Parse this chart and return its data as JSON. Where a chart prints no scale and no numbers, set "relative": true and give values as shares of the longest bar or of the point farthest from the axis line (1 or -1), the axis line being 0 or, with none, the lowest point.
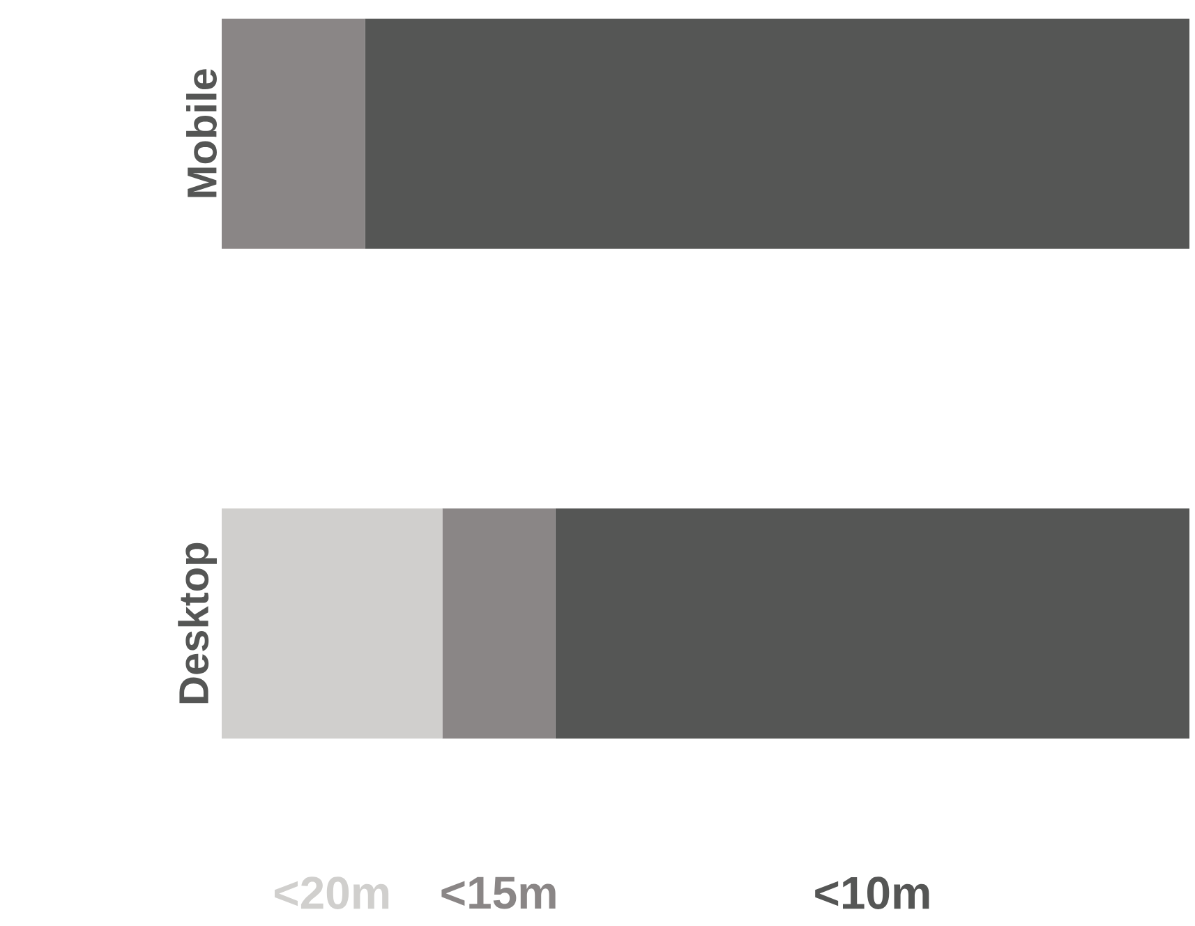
{
  "chart_data": {
    "type": "bar",
    "orientation": "horizontal",
    "stacked": true,
    "relative": true,
    "legend": "bottom",
    "categories": [
      "Mobile",
      "Desktop"
    ],
    "series": [
      {
        "name": "<20m",
        "color": "#d0cfcd",
        "values": [
          0,
          0.228
        ]
      },
      {
        "name": "<15m",
        "color": "#8a8686",
        "values": [
          0.148,
          0.117
        ]
      },
      {
        "name": "<10m",
        "color": "#555655",
        "values": [
          0.852,
          0.655
        ]
      }
    ]
  }
}
